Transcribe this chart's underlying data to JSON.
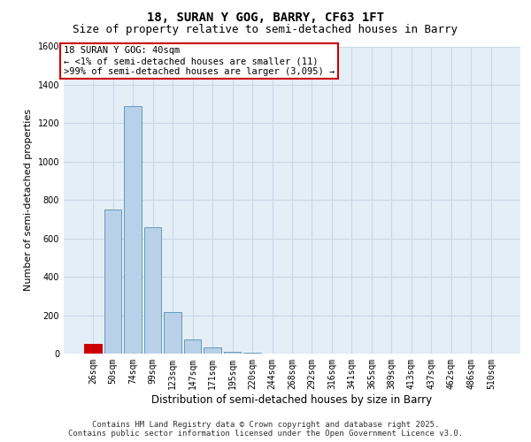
{
  "title": "18, SURAN Y GOG, BARRY, CF63 1FT",
  "subtitle": "Size of property relative to semi-detached houses in Barry",
  "xlabel": "Distribution of semi-detached houses by size in Barry",
  "ylabel": "Number of semi-detached properties",
  "categories": [
    "26sqm",
    "50sqm",
    "74sqm",
    "99sqm",
    "123sqm",
    "147sqm",
    "171sqm",
    "195sqm",
    "220sqm",
    "244sqm",
    "268sqm",
    "292sqm",
    "316sqm",
    "341sqm",
    "365sqm",
    "389sqm",
    "413sqm",
    "437sqm",
    "462sqm",
    "486sqm",
    "510sqm"
  ],
  "values": [
    50,
    750,
    1290,
    660,
    215,
    75,
    30,
    10,
    5,
    2,
    0,
    0,
    0,
    0,
    0,
    0,
    0,
    0,
    0,
    0,
    0
  ],
  "bar_color": "#b8d0e8",
  "bar_edge_color": "#6699bb",
  "highlight_bar_index": 0,
  "highlight_color": "#cc0000",
  "highlight_edge_color": "#cc0000",
  "annotation_text": "18 SURAN Y GOG: 40sqm\n← <1% of semi-detached houses are smaller (11)\n>99% of semi-detached houses are larger (3,095) →",
  "annotation_box_color": "#ffffff",
  "annotation_box_edge_color": "#cc0000",
  "ylim": [
    0,
    1600
  ],
  "yticks": [
    0,
    200,
    400,
    600,
    800,
    1000,
    1200,
    1400,
    1600
  ],
  "grid_color": "#c8d8e8",
  "background_color": "#e4eef6",
  "footer_line1": "Contains HM Land Registry data © Crown copyright and database right 2025.",
  "footer_line2": "Contains public sector information licensed under the Open Government Licence v3.0.",
  "title_fontsize": 10,
  "subtitle_fontsize": 9,
  "tick_fontsize": 7,
  "ylabel_fontsize": 8,
  "xlabel_fontsize": 8.5,
  "footer_fontsize": 6.5,
  "annotation_fontsize": 7.5
}
